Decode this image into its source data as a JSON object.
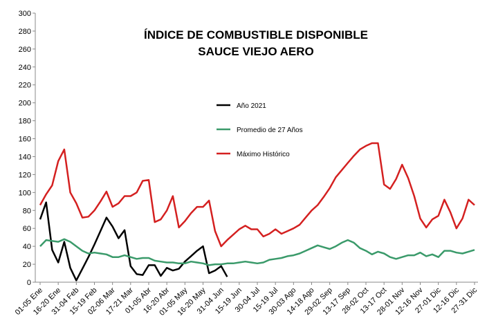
{
  "chart_data": {
    "type": "line",
    "title": [
      "ÍNDICE DE COMBUSTIBLE DISPONIBLE",
      "SAUCE VIEJO  AERO"
    ],
    "categories": [
      "01-05 Ene",
      null,
      null,
      "16-20 Ene",
      null,
      null,
      "31-04 Feb",
      null,
      null,
      "15-19 Feb",
      null,
      null,
      "02-06 Mar",
      null,
      null,
      "17-21 Mar",
      null,
      null,
      "01-05 Abr",
      null,
      null,
      "16-20 Abr",
      null,
      null,
      "01-05 May",
      null,
      null,
      "16-20 May",
      null,
      null,
      "31-04 Jun",
      null,
      null,
      "15-19 Jun",
      null,
      null,
      "30-04 Jul",
      null,
      null,
      "15-19 Jul",
      null,
      null,
      "30-03 Ago",
      null,
      null,
      "14-18 Ago",
      null,
      null,
      "29-02 Sep",
      null,
      null,
      "13-17 Sep",
      null,
      null,
      "28-02 Oct",
      null,
      null,
      "13-17 Oct",
      null,
      null,
      "28-01 Nov",
      null,
      null,
      "12-16 Nov",
      null,
      null,
      "27-01 Dic",
      null,
      null,
      "12-16 Dic",
      null,
      null,
      "27-31 Dic"
    ],
    "series": [
      {
        "name": "Año 2021",
        "color": "#000000",
        "values": [
          70,
          89,
          36,
          22,
          45,
          16,
          2,
          15,
          28,
          42,
          57,
          72,
          62,
          49,
          58,
          18,
          9,
          8,
          19,
          19,
          7,
          16,
          13,
          15,
          23,
          29,
          35,
          40,
          10,
          13,
          18,
          6,
          null,
          null,
          null,
          null,
          null,
          null,
          null,
          null,
          null,
          null,
          null,
          null,
          null,
          null,
          null,
          null,
          null,
          null,
          null,
          null,
          null,
          null,
          null,
          null,
          null,
          null,
          null,
          null,
          null,
          null,
          null,
          null,
          null,
          null,
          null,
          null,
          null,
          null,
          null,
          null,
          null
        ]
      },
      {
        "name": "Promedio de 27 Años",
        "color": "#3a9a6a",
        "values": [
          40,
          47,
          46,
          45,
          48,
          45,
          40,
          35,
          32,
          33,
          32,
          31,
          28,
          28,
          30,
          28,
          26,
          27,
          27,
          24,
          23,
          22,
          22,
          21,
          21,
          23,
          22,
          21,
          19,
          20,
          20,
          21,
          21,
          22,
          23,
          22,
          21,
          22,
          25,
          26,
          27,
          29,
          30,
          32,
          35,
          38,
          41,
          39,
          37,
          40,
          44,
          47,
          44,
          38,
          35,
          31,
          34,
          32,
          28,
          26,
          28,
          30,
          30,
          33,
          29,
          31,
          28,
          35,
          35,
          33,
          32,
          34,
          36
        ]
      },
      {
        "name": "Máximo Histórico",
        "color": "#d42020",
        "values": [
          86,
          98,
          108,
          135,
          148,
          100,
          88,
          72,
          73,
          80,
          90,
          101,
          84,
          88,
          96,
          96,
          100,
          113,
          114,
          67,
          70,
          80,
          96,
          61,
          68,
          77,
          84,
          84,
          91,
          57,
          40,
          47,
          53,
          59,
          63,
          59,
          59,
          51,
          54,
          59,
          54,
          57,
          60,
          64,
          72,
          80,
          86,
          95,
          105,
          117,
          125,
          133,
          141,
          148,
          152,
          155,
          155,
          109,
          104,
          115,
          131,
          116,
          96,
          71,
          61,
          70,
          74,
          92,
          78,
          60,
          71,
          92,
          86
        ]
      }
    ],
    "ylim": [
      0,
      300
    ],
    "yticks": [
      0,
      20,
      40,
      60,
      80,
      100,
      120,
      140,
      160,
      180,
      200,
      220,
      240,
      260,
      280,
      300
    ]
  }
}
